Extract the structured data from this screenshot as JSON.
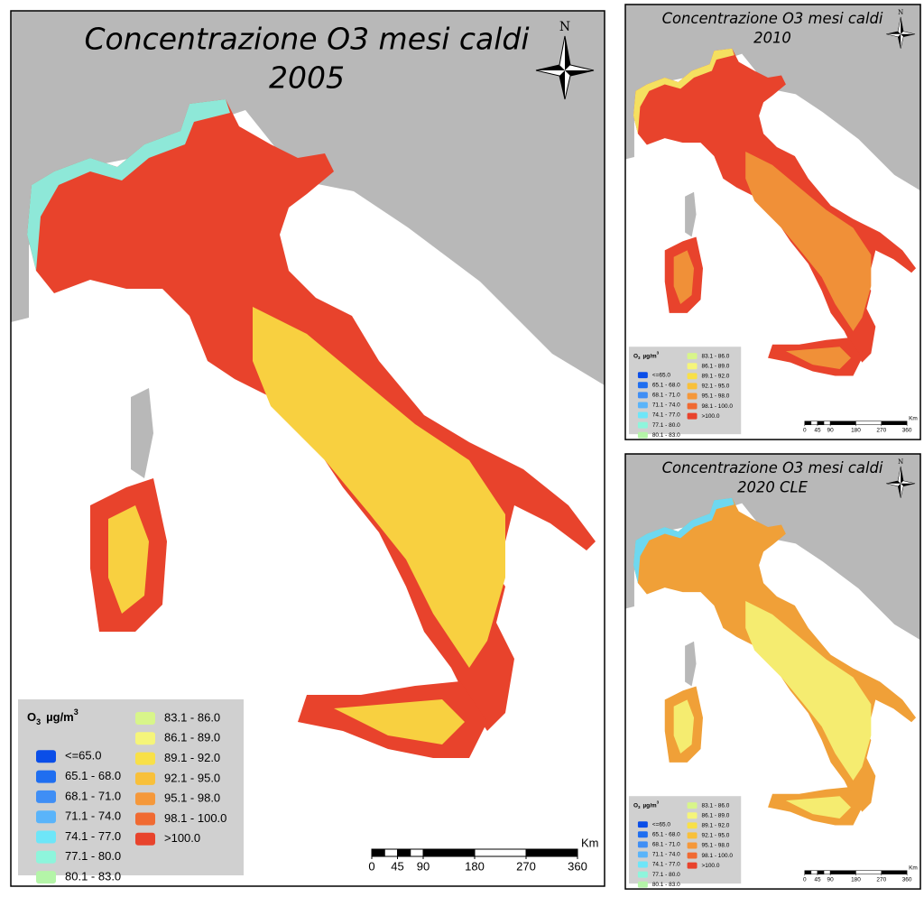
{
  "maps": [
    {
      "title": "Concentrazione O3 mesi caldi",
      "subtitle": "2005"
    },
    {
      "title": "Concentrazione O3 mesi caldi",
      "subtitle": "2010"
    },
    {
      "title": "Concentrazione O3 mesi caldi",
      "subtitle": "2020 CLE"
    }
  ],
  "north": "N",
  "legend": {
    "title": {
      "symbol": "O",
      "subscript": "3",
      "unit": "µg/m",
      "exponent": "3"
    },
    "items": [
      {
        "label": "<=65.0",
        "color": "#0a4ee8"
      },
      {
        "label": "65.1 - 68.0",
        "color": "#1f6ef0"
      },
      {
        "label": "68.1 - 71.0",
        "color": "#3f8ef5"
      },
      {
        "label": "71.1 - 74.0",
        "color": "#5ab4fa"
      },
      {
        "label": "74.1 - 77.0",
        "color": "#6ee6f8"
      },
      {
        "label": "77.1 - 80.0",
        "color": "#8ef5dc"
      },
      {
        "label": "80.1 - 83.0",
        "color": "#b4f5a8"
      },
      {
        "label": "83.1 - 86.0",
        "color": "#d8f58a"
      },
      {
        "label": "86.1 - 89.0",
        "color": "#f5f57a"
      },
      {
        "label": "89.1 - 92.0",
        "color": "#f8e048"
      },
      {
        "label": "92.1 - 95.0",
        "color": "#f8c03a"
      },
      {
        "label": "95.1 - 98.0",
        "color": "#f5983a"
      },
      {
        "label": "98.1 - 100.0",
        "color": "#f06a32"
      },
      {
        "label": ">100.0",
        "color": "#e8432c"
      }
    ]
  },
  "scale": {
    "unit": "Km",
    "xlim": [
      0,
      360
    ],
    "ticks": [
      0,
      45,
      90,
      180,
      270,
      360
    ]
  }
}
